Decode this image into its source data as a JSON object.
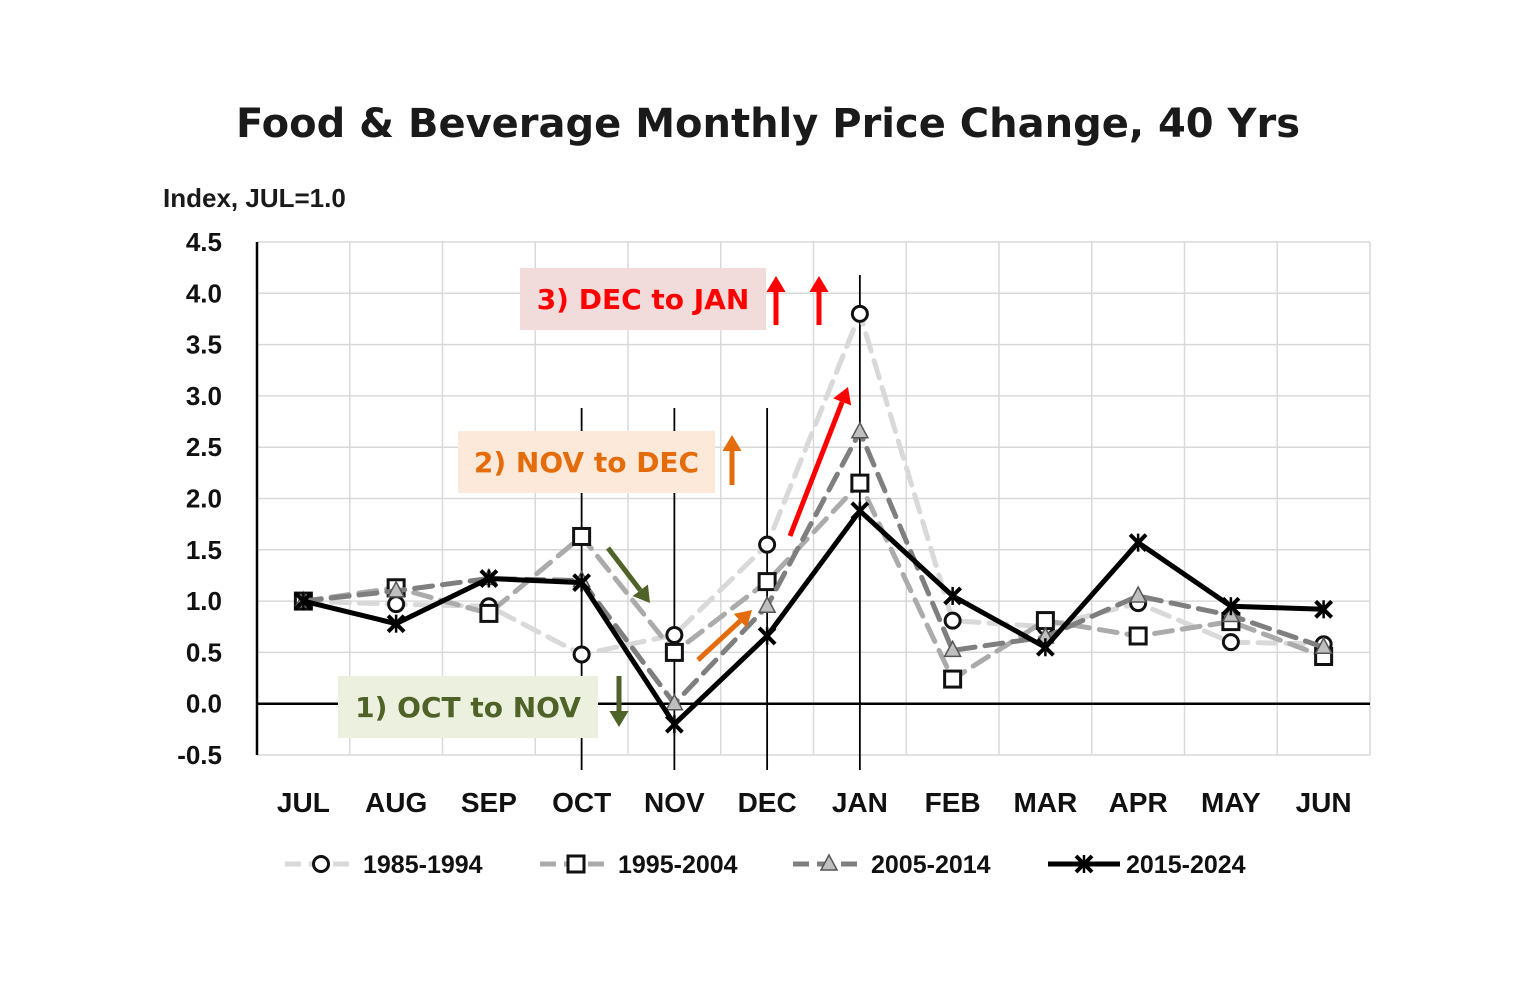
{
  "chart_data": {
    "type": "line",
    "title": "Food & Beverage Monthly Price Change, 40 Yrs",
    "ylabel": "Index,  JUL=1.0",
    "xlabel": "",
    "ylim": [
      -0.5,
      4.5
    ],
    "ytick_step": 0.5,
    "yticks": [
      "4.5",
      "4.0",
      "3.5",
      "3.0",
      "2.5",
      "2.0",
      "1.5",
      "1.0",
      "0.5",
      "0.0",
      "-0.5"
    ],
    "categories": [
      "JUL",
      "AUG",
      "SEP",
      "OCT",
      "NOV",
      "DEC",
      "JAN",
      "FEB",
      "MAR",
      "APR",
      "MAY",
      "JUN"
    ],
    "grid": true,
    "legend_position": "bottom",
    "series": [
      {
        "name": "1985-1994",
        "marker": "circle",
        "line_style": "dashed",
        "color": "#d9d9d9",
        "values": [
          1.0,
          0.97,
          0.95,
          0.48,
          0.67,
          1.55,
          3.8,
          0.81,
          0.75,
          0.98,
          0.6,
          0.58
        ]
      },
      {
        "name": "1995-2004",
        "marker": "square",
        "line_style": "dashed",
        "color": "#ababab",
        "values": [
          1.0,
          1.13,
          0.88,
          1.63,
          0.5,
          1.19,
          2.15,
          0.24,
          0.81,
          0.66,
          0.8,
          0.46
        ]
      },
      {
        "name": "2005-2014",
        "marker": "triangle",
        "line_style": "dashed",
        "color": "#7f7f7f",
        "values": [
          1.0,
          1.1,
          1.22,
          1.2,
          0.0,
          0.95,
          2.65,
          0.52,
          0.65,
          1.05,
          0.86,
          0.55
        ]
      },
      {
        "name": "2015-2024",
        "marker": "x",
        "line_style": "solid",
        "color": "#000000",
        "values": [
          1.0,
          0.78,
          1.22,
          1.18,
          -0.2,
          0.66,
          1.88,
          1.05,
          0.55,
          1.57,
          0.95,
          0.92
        ]
      }
    ],
    "annotations": [
      {
        "text": "1) OCT to NOV",
        "color": "#4f6228",
        "background": "#ebf1de"
      },
      {
        "text": "2) NOV to DEC",
        "color": "#e46c0a",
        "background": "#fde9d9"
      },
      {
        "text": "3) DEC to JAN",
        "color": "#ff0000",
        "background": "#f2dcdb"
      }
    ]
  }
}
